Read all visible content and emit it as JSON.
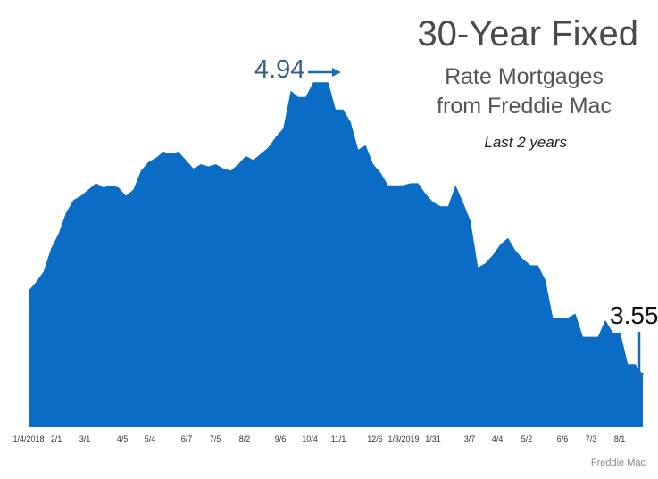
{
  "title": "30-Year Fixed",
  "subtitle_line1": "Rate Mortgages",
  "subtitle_line2": "from Freddie Mac",
  "subtitle_note": "Last 2 years",
  "source": "Freddie Mac",
  "colors": {
    "area": "#0a6cc4",
    "arrow": "#1a6bb5",
    "peak_label": "#3a5d8a"
  },
  "chart_data": {
    "type": "area",
    "ylim": [
      3.3,
      5.0
    ],
    "x_ticks": [
      "1/4/2018",
      "2/1",
      "3/1",
      "4/5",
      "5/4",
      "6/7",
      "7/5",
      "8/2",
      "9/6",
      "10/4",
      "11/1",
      "12/6",
      "1/3/2019",
      "1/31",
      "3/7",
      "4/4",
      "5/2",
      "6/6",
      "7/3",
      "8/1"
    ],
    "annotations": [
      {
        "label": "4.94",
        "value": 4.94
      },
      {
        "label": "3.55",
        "value": 3.55
      }
    ],
    "values": [
      3.95,
      3.99,
      4.04,
      4.15,
      4.22,
      4.32,
      4.38,
      4.4,
      4.43,
      4.46,
      4.44,
      4.45,
      4.44,
      4.4,
      4.43,
      4.52,
      4.56,
      4.58,
      4.61,
      4.6,
      4.61,
      4.57,
      4.53,
      4.55,
      4.54,
      4.55,
      4.53,
      4.52,
      4.55,
      4.59,
      4.57,
      4.6,
      4.63,
      4.68,
      4.72,
      4.9,
      4.87,
      4.87,
      4.94,
      4.94,
      4.94,
      4.81,
      4.81,
      4.75,
      4.62,
      4.64,
      4.55,
      4.51,
      4.45,
      4.45,
      4.45,
      4.46,
      4.46,
      4.41,
      4.37,
      4.35,
      4.35,
      4.45,
      4.37,
      4.28,
      4.06,
      4.08,
      4.12,
      4.17,
      4.2,
      4.14,
      4.1,
      4.07,
      4.07,
      4.0,
      3.82,
      3.82,
      3.82,
      3.84,
      3.73,
      3.73,
      3.73,
      3.81,
      3.75,
      3.75,
      3.6,
      3.6,
      3.55
    ],
    "xlabel": "",
    "ylabel": ""
  }
}
